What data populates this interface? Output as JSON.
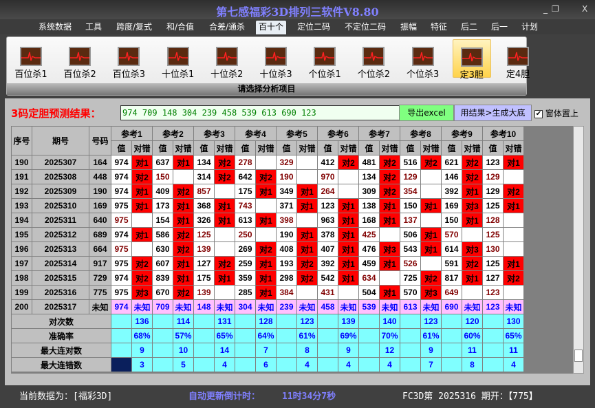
{
  "window": {
    "title": "第七感福彩3D排列三软件V8.80",
    "minimize": "_",
    "restore": "❐",
    "close": "X"
  },
  "menu": [
    "系统数据",
    "工具",
    "跨度/复式",
    "和/合值",
    "合差/通杀",
    "百十个",
    "定位二码",
    "不定位二码",
    "振幅",
    "特征",
    "后二",
    "后一",
    "计划"
  ],
  "menu_active": "百十个",
  "ribbon": {
    "tools": [
      "百位杀1",
      "百位杀2",
      "百位杀3",
      "十位杀1",
      "十位杀2",
      "十位杀3",
      "个位杀1",
      "个位杀2",
      "个位杀3",
      "定3胆",
      "定4胆"
    ],
    "active": "定3胆",
    "group_label": "请选择分析项目",
    "tool_icon": "heartbeat-monitor-icon"
  },
  "prediction": {
    "label": "3码定胆预测结果：",
    "value": "974 709 148 304 239 458 539 613 690 123",
    "export_button": "导出excel",
    "generate_button": "用结果>生成大底",
    "topmost_label": "窗体置上",
    "topmost_checked": true
  },
  "table": {
    "headers": {
      "seq": "序号",
      "period": "期号",
      "number": "号码",
      "refs": [
        "参考1",
        "参考2",
        "参考3",
        "参考4",
        "参考5",
        "参考6",
        "参考7",
        "参考8",
        "参考9",
        "参考10"
      ],
      "value": "值",
      "hit": "对错"
    },
    "rows": [
      {
        "seq": "190",
        "period": "2025307",
        "number": "164",
        "cells": [
          [
            "974",
            "对1"
          ],
          [
            "637",
            "对1"
          ],
          [
            "134",
            "对2"
          ],
          [
            "278",
            ""
          ],
          [
            "329",
            ""
          ],
          [
            "412",
            "对2"
          ],
          [
            "481",
            "对2"
          ],
          [
            "516",
            "对2"
          ],
          [
            "621",
            "对2"
          ],
          [
            "123",
            "对1"
          ]
        ]
      },
      {
        "seq": "191",
        "period": "2025308",
        "number": "448",
        "cells": [
          [
            "974",
            "对2"
          ],
          [
            "150",
            ""
          ],
          [
            "314",
            "对2"
          ],
          [
            "642",
            "对2"
          ],
          [
            "190",
            ""
          ],
          [
            "970",
            ""
          ],
          [
            "134",
            "对2"
          ],
          [
            "129",
            ""
          ],
          [
            "146",
            "对2"
          ],
          [
            "129",
            ""
          ]
        ]
      },
      {
        "seq": "192",
        "period": "2025309",
        "number": "190",
        "cells": [
          [
            "974",
            "对1"
          ],
          [
            "409",
            "对2"
          ],
          [
            "857",
            ""
          ],
          [
            "175",
            "对1"
          ],
          [
            "349",
            "对1"
          ],
          [
            "264",
            ""
          ],
          [
            "309",
            "对2"
          ],
          [
            "354",
            ""
          ],
          [
            "392",
            "对1"
          ],
          [
            "129",
            "对2"
          ]
        ]
      },
      {
        "seq": "193",
        "period": "2025310",
        "number": "169",
        "cells": [
          [
            "975",
            "对1"
          ],
          [
            "173",
            "对1"
          ],
          [
            "368",
            "对1"
          ],
          [
            "743",
            ""
          ],
          [
            "371",
            "对1"
          ],
          [
            "123",
            "对1"
          ],
          [
            "138",
            "对1"
          ],
          [
            "150",
            "对1"
          ],
          [
            "169",
            "对3"
          ],
          [
            "125",
            "对1"
          ]
        ]
      },
      {
        "seq": "194",
        "period": "2025311",
        "number": "640",
        "cells": [
          [
            "975",
            ""
          ],
          [
            "154",
            "对1"
          ],
          [
            "326",
            "对1"
          ],
          [
            "613",
            "对1"
          ],
          [
            "398",
            ""
          ],
          [
            "963",
            "对1"
          ],
          [
            "168",
            "对1"
          ],
          [
            "137",
            ""
          ],
          [
            "150",
            "对1"
          ],
          [
            "128",
            ""
          ]
        ]
      },
      {
        "seq": "195",
        "period": "2025312",
        "number": "689",
        "cells": [
          [
            "974",
            "对1"
          ],
          [
            "586",
            "对2"
          ],
          [
            "125",
            ""
          ],
          [
            "250",
            ""
          ],
          [
            "190",
            "对1"
          ],
          [
            "378",
            "对1"
          ],
          [
            "425",
            ""
          ],
          [
            "506",
            "对1"
          ],
          [
            "570",
            ""
          ],
          [
            "125",
            ""
          ]
        ]
      },
      {
        "seq": "196",
        "period": "2025313",
        "number": "664",
        "cells": [
          [
            "975",
            ""
          ],
          [
            "630",
            "对2"
          ],
          [
            "139",
            ""
          ],
          [
            "269",
            "对2"
          ],
          [
            "408",
            "对1"
          ],
          [
            "407",
            "对1"
          ],
          [
            "476",
            "对3"
          ],
          [
            "543",
            "对1"
          ],
          [
            "614",
            "对3"
          ],
          [
            "130",
            ""
          ]
        ]
      },
      {
        "seq": "197",
        "period": "2025314",
        "number": "917",
        "cells": [
          [
            "975",
            "对2"
          ],
          [
            "607",
            "对1"
          ],
          [
            "127",
            "对2"
          ],
          [
            "259",
            "对1"
          ],
          [
            "193",
            "对2"
          ],
          [
            "392",
            "对1"
          ],
          [
            "459",
            "对1"
          ],
          [
            "526",
            ""
          ],
          [
            "591",
            "对2"
          ],
          [
            "125",
            "对1"
          ]
        ]
      },
      {
        "seq": "198",
        "period": "2025315",
        "number": "729",
        "cells": [
          [
            "974",
            "对2"
          ],
          [
            "839",
            "对1"
          ],
          [
            "175",
            "对1"
          ],
          [
            "359",
            "对1"
          ],
          [
            "298",
            "对2"
          ],
          [
            "542",
            "对1"
          ],
          [
            "634",
            ""
          ],
          [
            "725",
            "对2"
          ],
          [
            "817",
            "对1"
          ],
          [
            "127",
            "对2"
          ]
        ]
      },
      {
        "seq": "199",
        "period": "2025316",
        "number": "775",
        "cells": [
          [
            "975",
            "对3"
          ],
          [
            "670",
            "对2"
          ],
          [
            "139",
            ""
          ],
          [
            "285",
            "对1"
          ],
          [
            "384",
            ""
          ],
          [
            "431",
            ""
          ],
          [
            "504",
            "对1"
          ],
          [
            "570",
            "对3"
          ],
          [
            "649",
            ""
          ],
          [
            "123",
            ""
          ]
        ]
      }
    ],
    "pending": {
      "seq": "200",
      "period": "2025317",
      "number": "未知",
      "values": [
        "974",
        "709",
        "148",
        "304",
        "239",
        "458",
        "539",
        "613",
        "690",
        "123"
      ],
      "status": "未知"
    },
    "summary": [
      {
        "label": "对次数",
        "values": [
          "136",
          "114",
          "131",
          "128",
          "123",
          "139",
          "140",
          "123",
          "120",
          "130"
        ]
      },
      {
        "label": "准确率",
        "values": [
          "68%",
          "57%",
          "65%",
          "64%",
          "61%",
          "69%",
          "70%",
          "61%",
          "60%",
          "65%"
        ]
      },
      {
        "label": "最大连对数",
        "values": [
          "9",
          "10",
          "14",
          "7",
          "8",
          "9",
          "12",
          "9",
          "11",
          "11"
        ]
      },
      {
        "label": "最大连错数",
        "values": [
          "3",
          "5",
          "4",
          "6",
          "4",
          "4",
          "4",
          "7",
          "8",
          "4"
        ]
      }
    ],
    "colors": {
      "hit": "#ff0000",
      "miss_text": "#800000",
      "pending": "#ffc0ff",
      "summary": "#80ffff"
    }
  },
  "status": {
    "current_data": "当前数据为：[福彩3D]",
    "countdown_label": "自动更新倒计时：",
    "countdown": "11时34分7秒",
    "last_draw": "FC3D第 2025316 期开：【775】"
  }
}
